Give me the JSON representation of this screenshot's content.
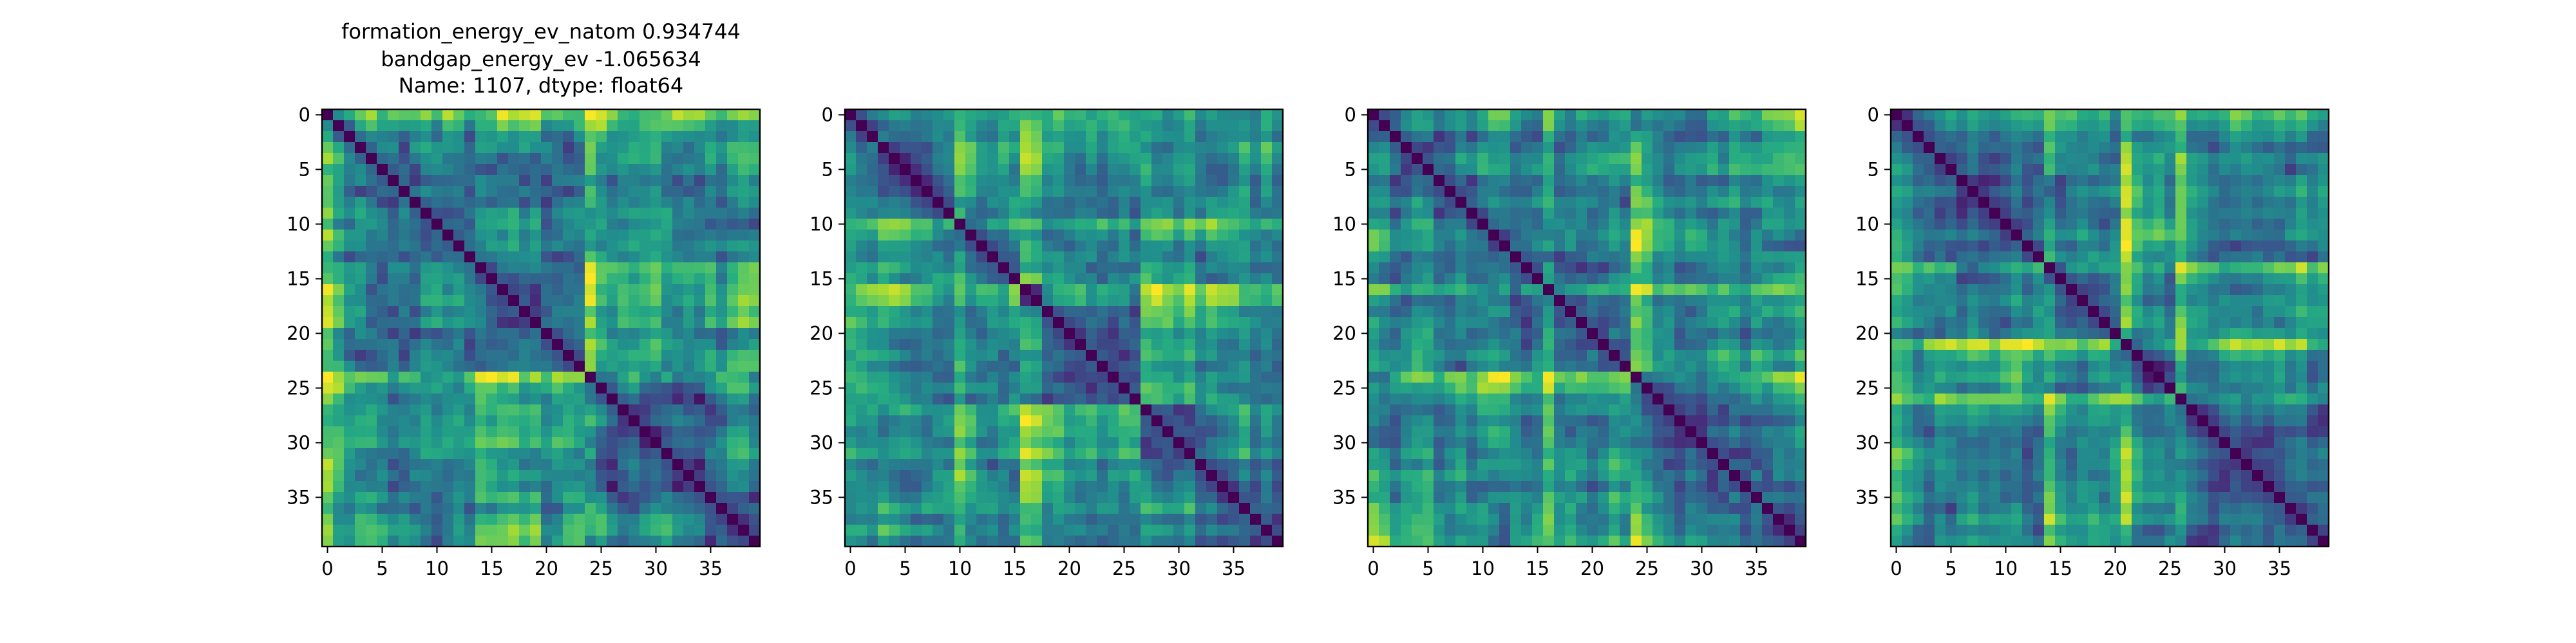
{
  "chart_data": [
    {
      "type": "heatmap",
      "title_lines": [
        "formation_energy_ev_natom    0.934744",
        "bandgap_energy_ev           -1.065634",
        "Name: 1107, dtype: float64"
      ],
      "grid_size": 40,
      "seed": 1107,
      "block_boundaries": [
        14,
        24
      ],
      "xticks": [
        0,
        5,
        10,
        15,
        20,
        25,
        30,
        35
      ],
      "yticks": [
        0,
        5,
        10,
        15,
        20,
        25,
        30,
        35
      ],
      "xlim": [
        0,
        39
      ],
      "ylim": [
        0,
        39
      ],
      "colormap": "viridis"
    },
    {
      "type": "heatmap",
      "title_lines": [],
      "grid_size": 40,
      "seed": 2203,
      "block_boundaries": [
        3,
        10,
        16,
        27
      ],
      "xticks": [
        0,
        5,
        10,
        15,
        20,
        25,
        30,
        35
      ],
      "yticks": [
        0,
        5,
        10,
        15,
        20,
        25,
        30,
        35
      ],
      "xlim": [
        0,
        39
      ],
      "ylim": [
        0,
        39
      ],
      "colormap": "viridis"
    },
    {
      "type": "heatmap",
      "title_lines": [],
      "grid_size": 40,
      "seed": 3307,
      "block_boundaries": [
        16,
        24
      ],
      "xticks": [
        0,
        5,
        10,
        15,
        20,
        25,
        30,
        35
      ],
      "yticks": [
        0,
        5,
        10,
        15,
        20,
        25,
        30,
        35
      ],
      "xlim": [
        0,
        39
      ],
      "ylim": [
        0,
        39
      ],
      "colormap": "viridis"
    },
    {
      "type": "heatmap",
      "title_lines": [],
      "grid_size": 40,
      "seed": 4409,
      "block_boundaries": [
        14,
        21,
        26
      ],
      "xticks": [
        0,
        5,
        10,
        15,
        20,
        25,
        30,
        35
      ],
      "yticks": [
        0,
        5,
        10,
        15,
        20,
        25,
        30,
        35
      ],
      "xlim": [
        0,
        39
      ],
      "ylim": [
        0,
        39
      ],
      "colormap": "viridis"
    }
  ],
  "colors": {
    "axis": "#000000",
    "background": "#ffffff"
  }
}
